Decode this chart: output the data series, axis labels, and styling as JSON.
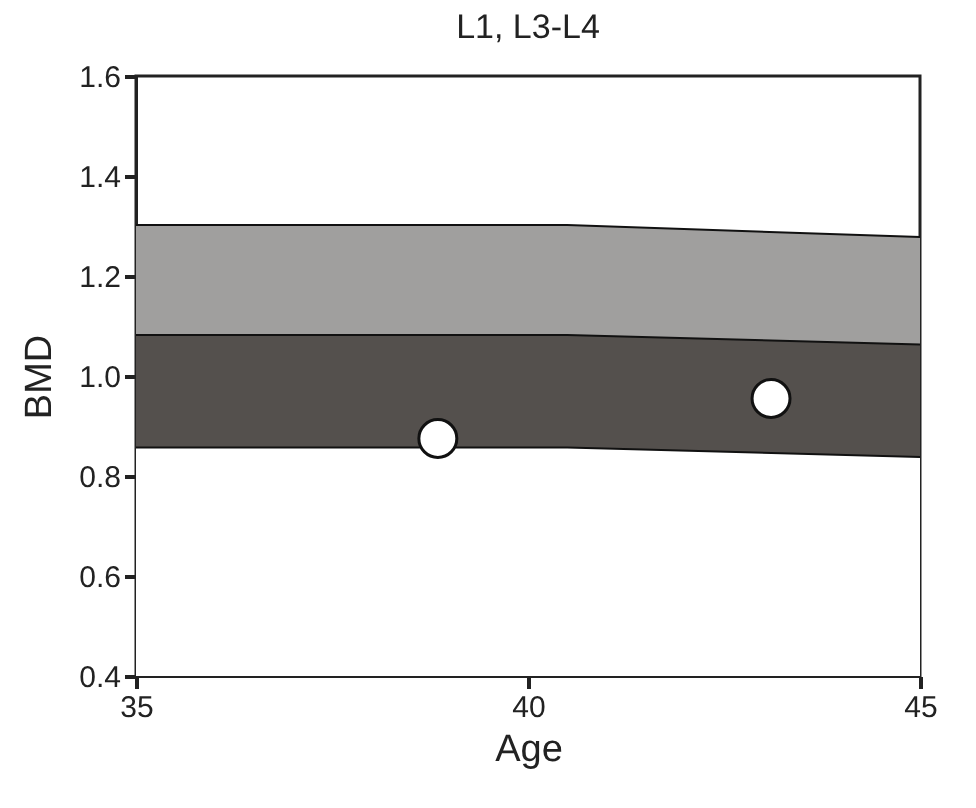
{
  "chart_data": {
    "type": "area",
    "title": "L1, L3-L4",
    "xlabel": "Age",
    "ylabel": "BMD",
    "xlim": [
      35,
      45
    ],
    "xticks": [
      35,
      40,
      45
    ],
    "ylim": [
      0.4,
      1.6
    ],
    "yticks": [
      0.4,
      0.6,
      0.8,
      {
        "value": 1,
        "label": "1.0"
      },
      1.2,
      1.4,
      1.6
    ],
    "grid": false,
    "series": [
      {
        "color": "#a09f9e",
        "x": [
          35,
          40.5,
          45
        ],
        "values": [
          1.302,
          1.302,
          1.278
        ]
      },
      {
        "color": "#54504d",
        "x": [
          35,
          40.5,
          45
        ],
        "values": [
          1.082,
          1.082,
          1.063
        ]
      },
      {
        "color": "#ffffff",
        "x": [
          35,
          40.5,
          45
        ],
        "values": [
          0.857,
          0.857,
          0.838
        ]
      },
      {
        "type": "scatter",
        "color": "#ffffff",
        "marker": "circle",
        "x": [
          38.85,
          43.1
        ],
        "values": [
          0.875,
          0.955
        ]
      }
    ]
  }
}
